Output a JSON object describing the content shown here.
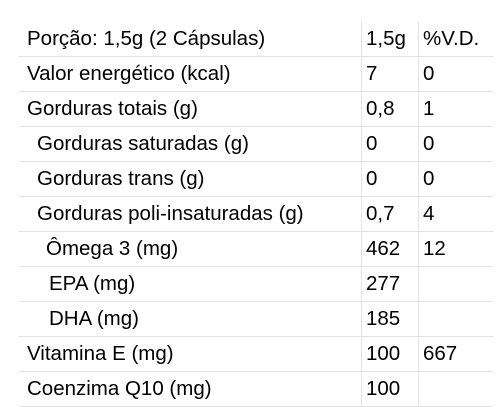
{
  "table": {
    "header": {
      "label": "Porção: 1,5g (2 Cápsulas)",
      "amount": "1,5g",
      "vd": "%V.D."
    },
    "rows": [
      {
        "label": "Valor energético (kcal)",
        "amount": "7",
        "vd": "0"
      },
      {
        "label": "Gorduras totais (g)",
        "amount": "0,8",
        "vd": "1"
      },
      {
        "label": "Gorduras saturadas (g)",
        "amount": "0",
        "vd": "0"
      },
      {
        "label": "Gorduras trans (g)",
        "amount": "0",
        "vd": "0"
      },
      {
        "label": "Gorduras poli-insaturadas (g)",
        "amount": "0,7",
        "vd": "4"
      },
      {
        "label": "Ômega 3 (mg)",
        "amount": "462",
        "vd": "12"
      },
      {
        "label": "EPA (mg)",
        "amount": "277",
        "vd": ""
      },
      {
        "label": "DHA (mg)",
        "amount": "185",
        "vd": ""
      },
      {
        "label": "Vitamina E (mg)",
        "amount": "100",
        "vd": "667"
      },
      {
        "label": "Coenzima Q10 (mg)",
        "amount": "100",
        "vd": ""
      }
    ]
  }
}
